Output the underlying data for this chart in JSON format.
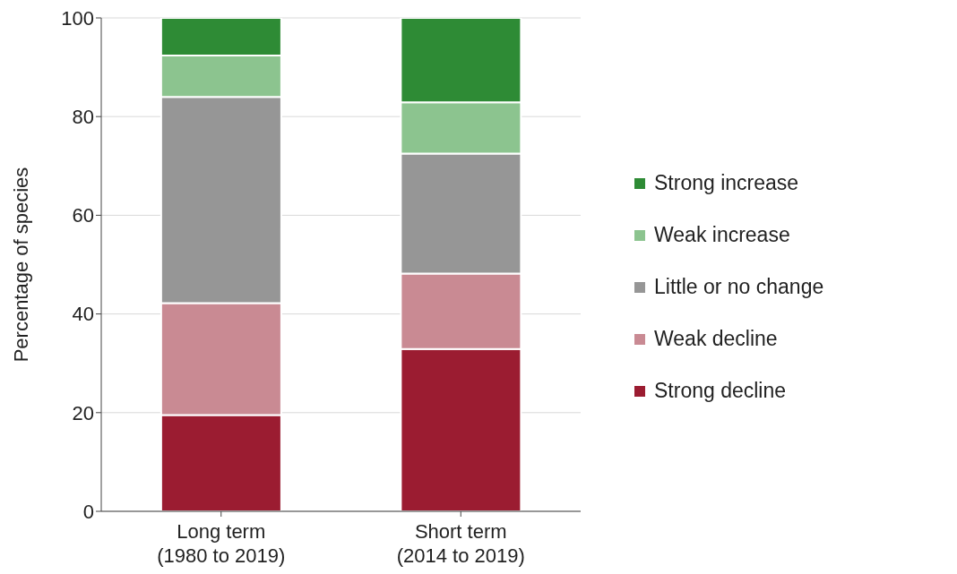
{
  "chart_data": {
    "type": "bar",
    "stacked": true,
    "ylabel": "Percentage of species",
    "categories": [
      "Long term\n(1980 to 2019)",
      "Short term\n(2014 to 2019)"
    ],
    "series": [
      {
        "name": "Strong decline",
        "color": "#9b1c31",
        "values": [
          19.5,
          32.9
        ]
      },
      {
        "name": "Weak decline",
        "color": "#c98a93",
        "values": [
          22.7,
          15.3
        ]
      },
      {
        "name": "Little or no change",
        "color": "#969696",
        "values": [
          41.8,
          24.3
        ]
      },
      {
        "name": "Weak increase",
        "color": "#8cc48f",
        "values": [
          8.4,
          10.4
        ]
      },
      {
        "name": "Strong increase",
        "color": "#2e8b35",
        "values": [
          7.6,
          17.1
        ]
      }
    ],
    "ylim": [
      0,
      100
    ],
    "yticks": [
      0,
      20,
      40,
      60,
      80,
      100
    ],
    "grid": "y",
    "legend": "right"
  }
}
